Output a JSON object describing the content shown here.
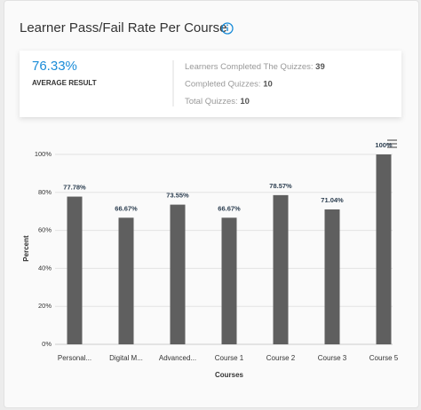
{
  "header": {
    "title": "Learner Pass/Fail Rate Per Course"
  },
  "summary": {
    "average": "76.33%",
    "average_label": "AVERAGE RESULT",
    "stats": [
      {
        "label": "Learners Completed The Quizzes:",
        "value": 39
      },
      {
        "label": "Completed Quizzes:",
        "value": 10
      },
      {
        "label": "Total Quizzes:",
        "value": 10
      }
    ]
  },
  "chart_data": {
    "type": "bar",
    "x_label": "Courses",
    "y_label": "Percent",
    "categories": [
      "Personal...",
      "Digital M...",
      "Advanced...",
      "Course 1",
      "Course 2",
      "Course 3",
      "Course 5"
    ],
    "values": [
      77.78,
      66.67,
      73.55,
      66.67,
      78.57,
      71.04,
      100
    ],
    "value_labels": [
      "77.78%",
      "66.67%",
      "73.55%",
      "66.67%",
      "78.57%",
      "71.04%",
      "100%"
    ],
    "color": "#5f5f5f",
    "ylim": [
      0,
      100
    ],
    "yticks": [
      {
        "value": 0,
        "label": "0%"
      },
      {
        "value": 20,
        "label": "20%"
      },
      {
        "value": 40,
        "label": "40%"
      },
      {
        "value": 60,
        "label": "60%"
      },
      {
        "value": 80,
        "label": "80%"
      },
      {
        "value": 100,
        "label": "100%"
      }
    ],
    "grid": true
  }
}
